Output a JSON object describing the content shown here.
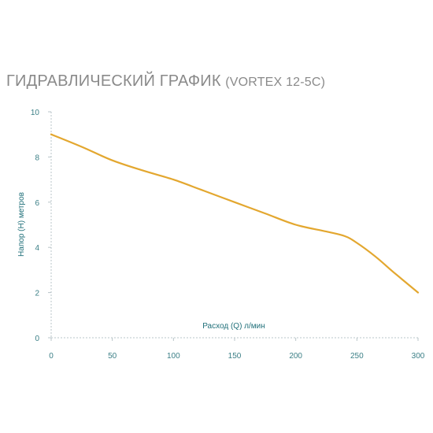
{
  "chart_data": {
    "type": "line",
    "title": "ГИДРАВЛИЧЕСКИЙ ГРАФИК",
    "subtitle": "(VORTEX 12-5C)",
    "xlabel": "Расход (Q) л/мин",
    "ylabel": "Напор (H) метров",
    "xlim": [
      0,
      300
    ],
    "ylim": [
      0,
      10
    ],
    "x_ticks": [
      0,
      50,
      100,
      150,
      200,
      250,
      300
    ],
    "y_ticks": [
      0,
      2,
      4,
      6,
      8,
      10
    ],
    "grid": false,
    "series": [
      {
        "color": "#e3a72f",
        "x": [
          0,
          25,
          50,
          75,
          100,
          125,
          150,
          175,
          200,
          225,
          240,
          250,
          265,
          280,
          300
        ],
        "y": [
          9.0,
          8.45,
          7.85,
          7.4,
          7.0,
          6.5,
          6.0,
          5.5,
          5.0,
          4.7,
          4.5,
          4.2,
          3.6,
          2.9,
          2.0
        ]
      }
    ]
  }
}
